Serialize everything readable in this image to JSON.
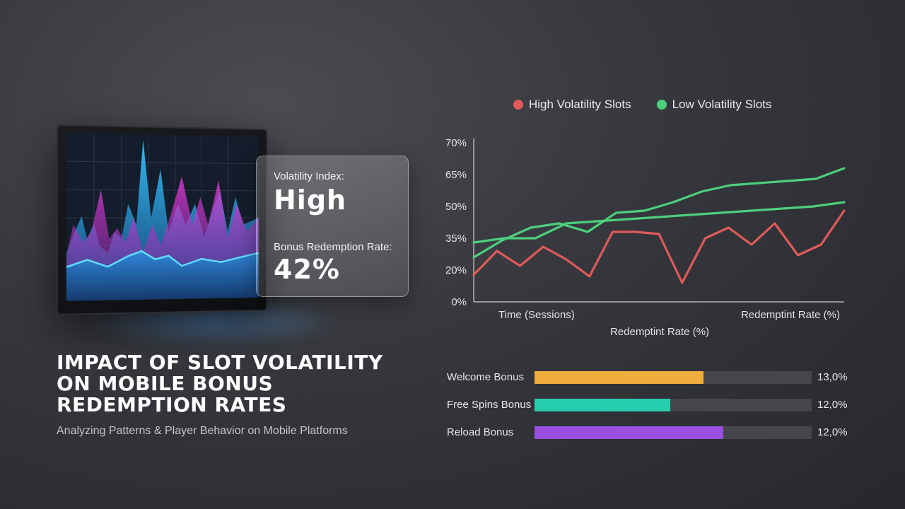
{
  "card": {
    "volatility_label": "Volatility Index:",
    "volatility_value": "High",
    "redemption_label": "Bonus Redemption Rate:",
    "redemption_value": "42%"
  },
  "title": "IMPACT OF SLOT VOLATILITY ON MOBILE BONUS REDEMPTION RATES",
  "subtitle": "Analyzing Patterns & Player Behavior on Mobile Platforms",
  "colors": {
    "high": "#e05a5a",
    "low": "#4ccf7d",
    "welcome": "#f0ad3c",
    "free_spins": "#25cfae",
    "reload": "#9b4fe0"
  },
  "chart_data": [
    {
      "type": "line",
      "legend": [
        "High Volatility Slots",
        "Low Volatility Slots"
      ],
      "legend_position": "top",
      "y_ticks": [
        "70%",
        "65%",
        "50%",
        "35%",
        "20%",
        "0%"
      ],
      "x_labels": [
        "Time (Sessions)",
        "Redemptint Rate (%)"
      ],
      "xlabel": "Redemptint Rate (%)",
      "series": [
        {
          "name": "High Volatility Slots",
          "color": "#e05a5a",
          "values": [
            17,
            29,
            22,
            31,
            25,
            16,
            38,
            38,
            37,
            12,
            35,
            40,
            32,
            42,
            27,
            32,
            48
          ]
        },
        {
          "name": "Low Volatility Slots",
          "color": "#4ccf7d",
          "values": [
            26,
            34,
            40,
            42,
            38,
            47,
            48,
            52,
            57,
            60,
            61,
            62,
            63,
            66
          ]
        },
        {
          "name": "",
          "color": "#4ccf7d",
          "values": [
            33,
            35,
            35,
            42,
            43,
            44,
            45,
            46,
            47,
            48,
            49,
            50,
            52
          ]
        }
      ]
    },
    {
      "type": "bar",
      "orientation": "horizontal",
      "categories": [
        "Welcome Bonus",
        "Free Spins Bonus",
        "Reload Bonus"
      ],
      "values": [
        13.0,
        12.0,
        12.0
      ],
      "labels": [
        "13,0%",
        "12,0%",
        "12,0%"
      ],
      "fill_fractions": [
        0.61,
        0.49,
        0.68
      ],
      "colors": [
        "#f0ad3c",
        "#25cfae",
        "#9b4fe0"
      ]
    }
  ]
}
